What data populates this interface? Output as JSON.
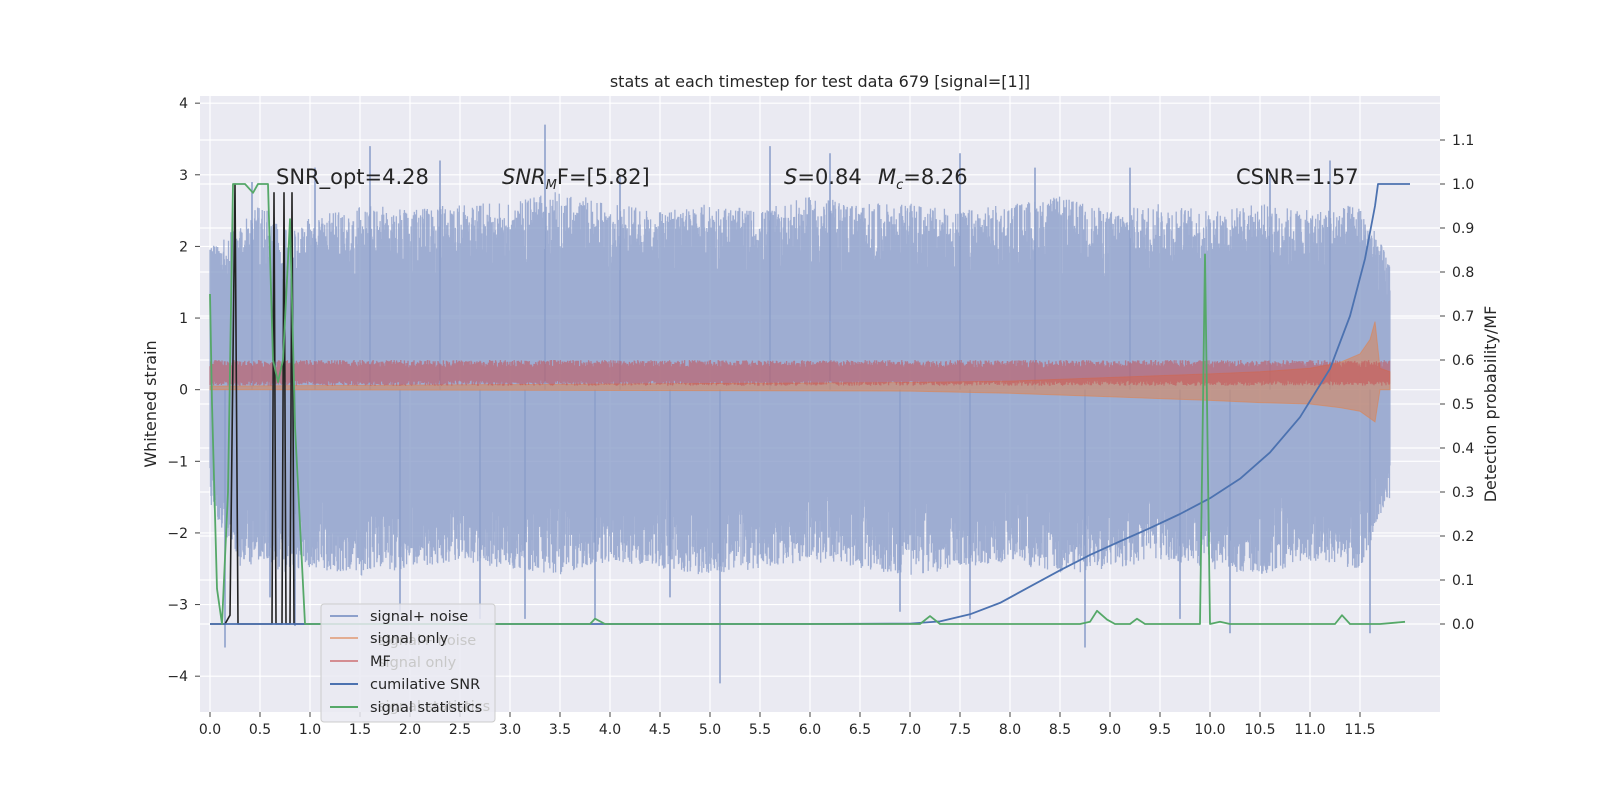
{
  "chart_data": {
    "type": "line",
    "title": "stats at each timestep for test data 679 [signal=[1]]",
    "ylabel": "Whitened strain",
    "y2label": "Detection probability/MF",
    "xlim": [
      -0.1,
      12.3
    ],
    "ylim": [
      -4.5,
      4.1
    ],
    "y2lim": [
      -0.2,
      1.2
    ],
    "grid": true,
    "x_ticks": [
      "0.0",
      "0.5",
      "1.0",
      "1.5",
      "2.0",
      "2.5",
      "3.0",
      "3.5",
      "4.0",
      "4.5",
      "5.0",
      "5.5",
      "6.0",
      "6.5",
      "7.0",
      "7.5",
      "8.0",
      "8.5",
      "9.0",
      "9.5",
      "10.0",
      "10.5",
      "11.0",
      "11.5"
    ],
    "y_ticks": [
      "4",
      "3",
      "2",
      "1",
      "0",
      "−1",
      "−2",
      "−3",
      "−4"
    ],
    "y2_ticks": [
      "1.1",
      "1.0",
      "0.9",
      "0.8",
      "0.7",
      "0.6",
      "0.5",
      "0.4",
      "0.3",
      "0.2",
      "0.1",
      "0.0"
    ],
    "annotations": {
      "snr_opt": "SNR_opt=4.28",
      "snr_mf_base": "SNR",
      "snr_mf_sub": "M",
      "snr_mf_rest": "F=[5.82]",
      "s_base": "S",
      "s_rest": "=0.84",
      "mc_base": "M",
      "mc_sub": "c",
      "mc_rest": "=8.26",
      "csnr": "CSNR=1.57"
    },
    "legend": {
      "placement": "lower-left",
      "entries": [
        "signal+ noise",
        "signal only",
        "MF",
        "cumilative SNR",
        "signal statistics"
      ],
      "ghost_entries": [
        "signal+ noise",
        "signal only",
        "signal statistics"
      ]
    },
    "colors": {
      "signal_noise": "#8da0cb",
      "signal_only": "#dd8452",
      "mf": "#c44e52",
      "cumulative_snr": "#4c72b0",
      "signal_statistics": "#55a868",
      "black": "#222222",
      "plot_bg": "#eaeaf2"
    },
    "series": [
      {
        "name": "signal+ noise",
        "axis": "left",
        "style": "noise band",
        "envelope_upper": [
          [
            0,
            2.0
          ],
          [
            0.3,
            2.3
          ],
          [
            0.5,
            2.6
          ],
          [
            0.8,
            2.2
          ],
          [
            1.0,
            2.4
          ],
          [
            1.5,
            2.6
          ],
          [
            2.0,
            2.5
          ],
          [
            2.5,
            2.6
          ],
          [
            3.0,
            2.6
          ],
          [
            3.5,
            2.8
          ],
          [
            4.0,
            2.6
          ],
          [
            4.5,
            2.5
          ],
          [
            5.0,
            2.6
          ],
          [
            5.5,
            2.5
          ],
          [
            6.0,
            2.7
          ],
          [
            6.5,
            2.6
          ],
          [
            7.0,
            2.6
          ],
          [
            7.5,
            2.5
          ],
          [
            8.0,
            2.6
          ],
          [
            8.5,
            2.7
          ],
          [
            9.0,
            2.5
          ],
          [
            9.5,
            2.6
          ],
          [
            10.0,
            2.5
          ],
          [
            10.5,
            2.6
          ],
          [
            11.0,
            2.5
          ],
          [
            11.5,
            2.6
          ],
          [
            11.8,
            1.8
          ]
        ],
        "envelope_lower": [
          [
            0,
            -1.6
          ],
          [
            0.3,
            -2.5
          ],
          [
            0.5,
            -2.4
          ],
          [
            0.8,
            -2.6
          ],
          [
            1.0,
            -2.5
          ],
          [
            1.5,
            -2.6
          ],
          [
            2.0,
            -2.5
          ],
          [
            2.5,
            -2.4
          ],
          [
            3.0,
            -2.5
          ],
          [
            3.5,
            -2.6
          ],
          [
            4.0,
            -2.4
          ],
          [
            4.5,
            -2.5
          ],
          [
            5.0,
            -2.6
          ],
          [
            5.5,
            -2.5
          ],
          [
            6.0,
            -2.4
          ],
          [
            6.5,
            -2.5
          ],
          [
            7.0,
            -2.6
          ],
          [
            7.5,
            -2.5
          ],
          [
            8.0,
            -2.4
          ],
          [
            8.5,
            -2.6
          ],
          [
            9.0,
            -2.5
          ],
          [
            9.5,
            -2.4
          ],
          [
            10.0,
            -2.5
          ],
          [
            10.5,
            -2.6
          ],
          [
            11.0,
            -2.4
          ],
          [
            11.5,
            -2.5
          ],
          [
            11.8,
            -1.5
          ]
        ],
        "spikes": [
          [
            0.15,
            -3.6
          ],
          [
            0.42,
            2.9
          ],
          [
            0.6,
            -2.9
          ],
          [
            0.85,
            -3.3
          ],
          [
            1.05,
            3.1
          ],
          [
            1.6,
            3.4
          ],
          [
            1.9,
            -3.1
          ],
          [
            2.3,
            3.2
          ],
          [
            2.7,
            -3.2
          ],
          [
            3.15,
            -3.2
          ],
          [
            3.35,
            3.7
          ],
          [
            3.85,
            -3.2
          ],
          [
            4.1,
            3.0
          ],
          [
            4.6,
            -2.9
          ],
          [
            5.1,
            -4.1
          ],
          [
            5.6,
            3.4
          ],
          [
            6.2,
            3.3
          ],
          [
            6.9,
            -3.1
          ],
          [
            7.5,
            3.3
          ],
          [
            7.6,
            -3.2
          ],
          [
            8.25,
            3.1
          ],
          [
            8.75,
            -3.6
          ],
          [
            9.2,
            3.1
          ],
          [
            9.7,
            -3.2
          ],
          [
            10.2,
            -3.4
          ],
          [
            10.6,
            3.0
          ],
          [
            11.2,
            3.2
          ],
          [
            11.6,
            -3.4
          ]
        ]
      },
      {
        "name": "signal only",
        "axis": "left",
        "style": "chirp band",
        "upper": [
          [
            0,
            0.05
          ],
          [
            7.0,
            0.1
          ],
          [
            8.0,
            0.12
          ],
          [
            9.0,
            0.17
          ],
          [
            10.0,
            0.22
          ],
          [
            10.5,
            0.25
          ],
          [
            11.0,
            0.3
          ],
          [
            11.3,
            0.38
          ],
          [
            11.5,
            0.5
          ],
          [
            11.6,
            0.7
          ],
          [
            11.65,
            0.95
          ],
          [
            11.7,
            0.3
          ],
          [
            11.8,
            0.25
          ]
        ],
        "lower": [
          [
            0,
            0.0
          ],
          [
            7.0,
            -0.02
          ],
          [
            8.0,
            -0.05
          ],
          [
            9.0,
            -0.1
          ],
          [
            10.0,
            -0.15
          ],
          [
            10.5,
            -0.18
          ],
          [
            11.0,
            -0.2
          ],
          [
            11.3,
            -0.25
          ],
          [
            11.5,
            -0.3
          ],
          [
            11.6,
            -0.4
          ],
          [
            11.65,
            -0.45
          ],
          [
            11.7,
            0.0
          ],
          [
            11.8,
            0.0
          ]
        ]
      },
      {
        "name": "MF",
        "axis": "left",
        "style": "band",
        "center": 0.22,
        "amplitude": 0.15,
        "x_range": [
          0,
          11.8
        ]
      },
      {
        "name": "cumilative SNR",
        "axis": "right",
        "points": [
          [
            0,
            0.0
          ],
          [
            6.0,
            0.0
          ],
          [
            7.0,
            0.001
          ],
          [
            7.3,
            0.006
          ],
          [
            7.6,
            0.022
          ],
          [
            7.9,
            0.048
          ],
          [
            8.2,
            0.085
          ],
          [
            8.5,
            0.122
          ],
          [
            8.8,
            0.157
          ],
          [
            9.1,
            0.188
          ],
          [
            9.4,
            0.218
          ],
          [
            9.7,
            0.25
          ],
          [
            10.0,
            0.286
          ],
          [
            10.3,
            0.33
          ],
          [
            10.6,
            0.39
          ],
          [
            10.9,
            0.47
          ],
          [
            11.2,
            0.58
          ],
          [
            11.4,
            0.7
          ],
          [
            11.55,
            0.83
          ],
          [
            11.65,
            0.95
          ],
          [
            11.68,
            1.0
          ],
          [
            12.0,
            1.0
          ]
        ]
      },
      {
        "name": "signal statistics",
        "axis": "right",
        "points": [
          [
            0,
            0.75
          ],
          [
            0.02,
            0.5
          ],
          [
            0.07,
            0.08
          ],
          [
            0.12,
            0.0
          ],
          [
            0.18,
            0.3
          ],
          [
            0.23,
            1.0
          ],
          [
            0.35,
            1.0
          ],
          [
            0.43,
            0.98
          ],
          [
            0.48,
            1.0
          ],
          [
            0.58,
            1.0
          ],
          [
            0.63,
            0.6
          ],
          [
            0.68,
            0.55
          ],
          [
            0.73,
            0.6
          ],
          [
            0.8,
            0.92
          ],
          [
            0.85,
            0.45
          ],
          [
            0.95,
            0.0
          ],
          [
            3.8,
            0.0
          ],
          [
            3.85,
            0.012
          ],
          [
            3.95,
            0.0
          ],
          [
            7.1,
            0.0
          ],
          [
            7.2,
            0.018
          ],
          [
            7.3,
            0.0
          ],
          [
            8.7,
            0.0
          ],
          [
            8.8,
            0.005
          ],
          [
            8.87,
            0.03
          ],
          [
            8.97,
            0.01
          ],
          [
            9.05,
            0.0
          ],
          [
            9.2,
            0.0
          ],
          [
            9.27,
            0.012
          ],
          [
            9.35,
            0.0
          ],
          [
            9.9,
            0.0
          ],
          [
            9.95,
            0.84
          ],
          [
            10.0,
            0.0
          ],
          [
            10.1,
            0.005
          ],
          [
            10.2,
            0.0
          ],
          [
            11.25,
            0.0
          ],
          [
            11.32,
            0.02
          ],
          [
            11.4,
            0.0
          ],
          [
            11.7,
            0.0
          ],
          [
            11.95,
            0.005
          ]
        ]
      },
      {
        "name": "",
        "axis": "right",
        "points": [
          [
            0,
            0.0
          ],
          [
            0.15,
            0.0
          ],
          [
            0.2,
            0.02
          ],
          [
            0.25,
            1.0
          ],
          [
            0.28,
            0.0
          ],
          [
            0.62,
            0.0
          ],
          [
            0.64,
            0.98
          ],
          [
            0.66,
            0.0
          ],
          [
            0.72,
            0.0
          ],
          [
            0.74,
            0.98
          ],
          [
            0.76,
            0.0
          ],
          [
            0.8,
            0.0
          ],
          [
            0.82,
            0.98
          ],
          [
            0.84,
            0.0
          ],
          [
            0.9,
            0.0
          ],
          [
            1.0,
            0.0
          ]
        ]
      }
    ]
  }
}
